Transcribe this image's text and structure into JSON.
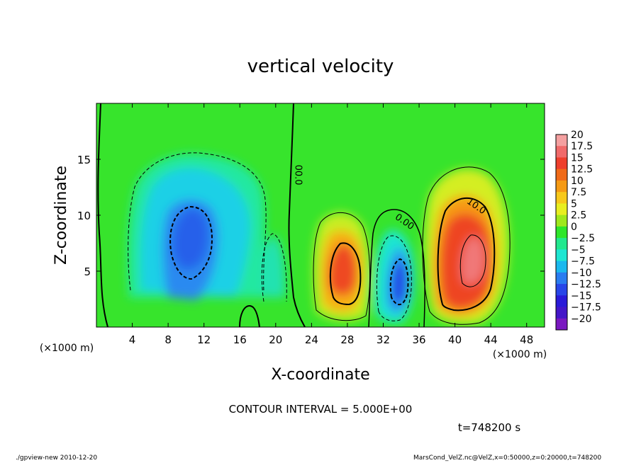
{
  "chart_data": {
    "type": "heatmap",
    "title": "vertical velocity",
    "xlabel": "X-coordinate",
    "ylabel": "Z-coordinate",
    "x_unit": "(×1000 m)",
    "y_unit": "(×1000 m)",
    "xlim": [
      0,
      50
    ],
    "ylim": [
      0,
      20
    ],
    "x_ticks": [
      4,
      8,
      12,
      16,
      20,
      24,
      28,
      32,
      36,
      40,
      44,
      48
    ],
    "y_ticks": [
      5,
      10,
      15
    ],
    "contour_interval_text": "CONTOUR INTERVAL = 5.000E+00",
    "time_text": "t=748200 s",
    "contour_labels": [
      {
        "text": "00.0",
        "x": 22.2,
        "z": 13.6
      },
      {
        "text": "0.00",
        "x": 34.2,
        "z": 9.2
      },
      {
        "text": "10.0",
        "x": 42.2,
        "z": 10.6
      }
    ],
    "colorbar": {
      "labels": [
        "20",
        "17.5",
        "15",
        "12.5",
        "10",
        "7.5",
        "5",
        "2.5",
        "0",
        "−2.5",
        "−5",
        "−7.5",
        "−10",
        "−12.5",
        "−15",
        "−17.5",
        "−20"
      ],
      "colors": [
        "#f4a0a0",
        "#f06a6a",
        "#ee3f2c",
        "#f06a18",
        "#f59a14",
        "#f7c81a",
        "#e8ee20",
        "#9fe81c",
        "#2ee62a",
        "#22e88e",
        "#1ee6d2",
        "#1ab8ee",
        "#2a7cf0",
        "#2846e8",
        "#2a1ad8",
        "#4416c8",
        "#7a18c0"
      ]
    },
    "features": [
      {
        "type": "updraft",
        "x_center": 27.5,
        "z_center": 5.5,
        "peak": 15
      },
      {
        "type": "updraft",
        "x_center": 41.5,
        "z_center": 6.5,
        "peak": 17.5
      },
      {
        "type": "downdraft",
        "x_center": 33.5,
        "z_center": 4.5,
        "peak": -12.5
      },
      {
        "type": "downdraft",
        "x_center": 10.5,
        "z_center": 8.5,
        "peak": -12.5
      }
    ]
  },
  "footer": {
    "left": "./gpview-new   2010-12-20",
    "right": "MarsCond_VelZ.nc@VelZ,x=0:50000,z=0:20000,t=748200"
  }
}
